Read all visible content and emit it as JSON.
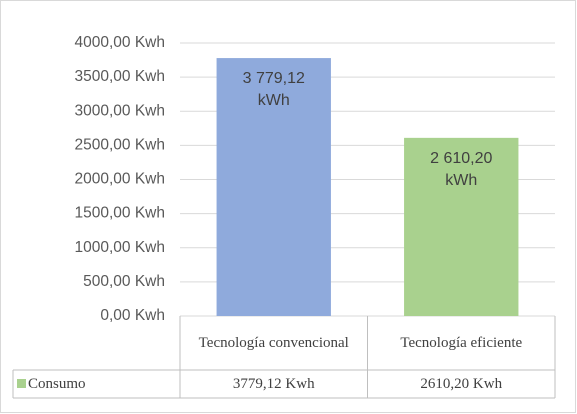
{
  "chart_data": {
    "type": "bar",
    "categories": [
      "Tecnología convencional",
      "Tecnología eficiente"
    ],
    "series": [
      {
        "name": "Consumo",
        "color": "#a9d18e",
        "values": [
          3779.12,
          2610.2
        ],
        "colors": [
          "#8faadc",
          "#a9d18e"
        ],
        "value_labels": [
          "3 779,12 kWh",
          "2 610,20 kWh"
        ],
        "table_labels": [
          "3779,12 Kwh",
          "2610,20 Kwh"
        ]
      }
    ],
    "ylim": [
      0,
      4000
    ],
    "yticks": [
      {
        "value": 0,
        "label": "0,00 Kwh"
      },
      {
        "value": 500,
        "label": "500,00 Kwh"
      },
      {
        "value": 1000,
        "label": "1000,00 Kwh"
      },
      {
        "value": 1500,
        "label": "1500,00 Kwh"
      },
      {
        "value": 2000,
        "label": "2000,00 Kwh"
      },
      {
        "value": 2500,
        "label": "2500,00 Kwh"
      },
      {
        "value": 3000,
        "label": "3000,00 Kwh"
      },
      {
        "value": 3500,
        "label": "3500,00 Kwh"
      },
      {
        "value": 4000,
        "label": "4000,00 Kwh"
      }
    ],
    "grid": true
  }
}
